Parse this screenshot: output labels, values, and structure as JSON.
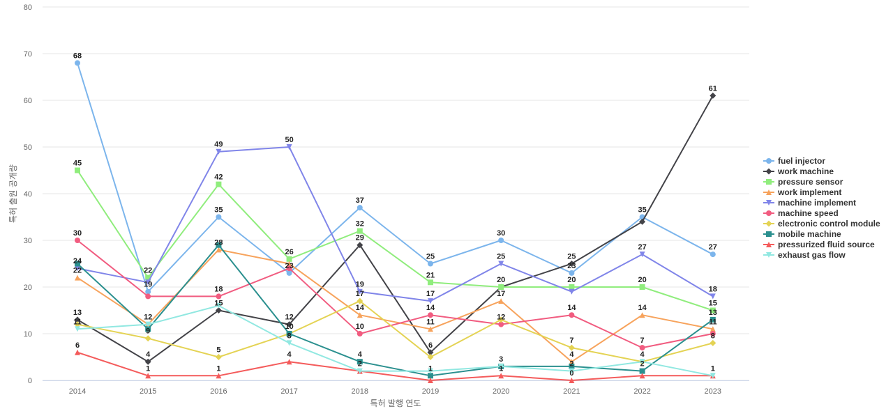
{
  "chart_data": {
    "type": "line",
    "title": "",
    "xlabel": "특허 발행 연도",
    "ylabel": "특허 출원 공개량",
    "ylim": [
      0,
      80
    ],
    "yticks": [
      0,
      10,
      20,
      30,
      40,
      50,
      60,
      70,
      80
    ],
    "grid": true,
    "legend_position": "right",
    "x": [
      "2014",
      "2015",
      "2016",
      "2017",
      "2018",
      "2019",
      "2020",
      "2021",
      "2022",
      "2023"
    ],
    "series": [
      {
        "name": "fuel injector",
        "color": "#7cb5ec",
        "marker": "circle",
        "values": [
          68,
          19,
          35,
          23,
          37,
          25,
          30,
          23,
          35,
          27
        ]
      },
      {
        "name": "work machine",
        "color": "#434348",
        "marker": "diamond",
        "values": [
          13,
          4,
          15,
          12,
          29,
          6,
          20,
          25,
          34,
          61
        ]
      },
      {
        "name": "pressure sensor",
        "color": "#90ed7d",
        "marker": "square",
        "values": [
          45,
          22,
          42,
          26,
          32,
          21,
          20,
          20,
          20,
          15
        ]
      },
      {
        "name": "work implement",
        "color": "#f7a35c",
        "marker": "triangle",
        "values": [
          22,
          12,
          28,
          25,
          14,
          11,
          17,
          4,
          14,
          11
        ]
      },
      {
        "name": "machine implement",
        "color": "#8085e9",
        "marker": "triangle-down",
        "values": [
          24,
          21,
          49,
          50,
          19,
          17,
          25,
          19,
          27,
          18
        ]
      },
      {
        "name": "machine speed",
        "color": "#f15c80",
        "marker": "circle",
        "values": [
          30,
          18,
          18,
          24,
          10,
          14,
          12,
          14,
          7,
          10
        ]
      },
      {
        "name": "electronic control module",
        "color": "#e4d354",
        "marker": "diamond",
        "values": [
          12,
          9,
          5,
          10,
          17,
          5,
          13,
          7,
          4,
          8
        ]
      },
      {
        "name": "mobile machine",
        "color": "#2b908f",
        "marker": "square",
        "values": [
          25,
          11,
          29,
          10,
          4,
          1,
          3,
          3,
          2,
          13
        ]
      },
      {
        "name": "pressurized fluid source",
        "color": "#f45b5b",
        "marker": "triangle",
        "values": [
          6,
          1,
          1,
          4,
          2,
          0,
          1,
          0,
          1,
          1
        ]
      },
      {
        "name": "exhaust gas flow",
        "color": "#91e8e1",
        "marker": "triangle-down",
        "values": [
          11,
          12,
          16,
          8,
          2,
          2,
          3,
          2,
          4,
          1
        ]
      }
    ],
    "data_labels": [
      {
        "x": "2014",
        "texts": [
          "68",
          "45",
          "30",
          "24",
          "22",
          "13",
          "11",
          "6"
        ]
      },
      {
        "x": "2015",
        "texts": [
          "22",
          "19",
          "12",
          "9",
          "4",
          "1"
        ]
      },
      {
        "x": "2016",
        "texts": [
          "49",
          "42",
          "35",
          "28",
          "18",
          "15",
          "5",
          "1"
        ]
      },
      {
        "x": "2017",
        "texts": [
          "50",
          "26",
          "23",
          "12",
          "10",
          "8",
          "4"
        ]
      },
      {
        "x": "2018",
        "texts": [
          "37",
          "32",
          "29",
          "19",
          "17",
          "14",
          "10",
          "4",
          "2"
        ]
      },
      {
        "x": "2019",
        "texts": [
          "25",
          "21",
          "17",
          "14",
          "11",
          "6",
          "1"
        ]
      },
      {
        "x": "2020",
        "texts": [
          "30",
          "25",
          "20",
          "17",
          "12",
          "3",
          "1"
        ]
      },
      {
        "x": "2021",
        "texts": [
          "25",
          "23",
          "20",
          "14",
          "7",
          "4",
          "2",
          "0"
        ]
      },
      {
        "x": "2022",
        "texts": [
          "35",
          "27",
          "20",
          "14",
          "7",
          "4",
          "2"
        ]
      },
      {
        "x": "2023",
        "texts": [
          "61",
          "27",
          "18",
          "15",
          "13",
          "11",
          "8",
          "1"
        ]
      }
    ]
  }
}
